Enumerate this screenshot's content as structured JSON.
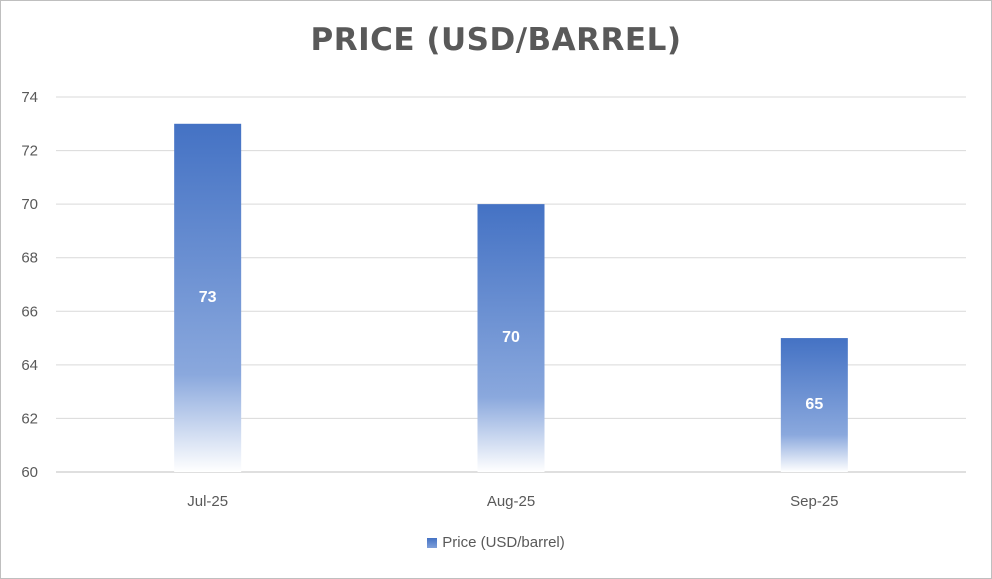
{
  "chart_data": {
    "type": "bar",
    "title": "PRICE (USD/BARREL)",
    "categories": [
      "Jul-25",
      "Aug-25",
      "Sep-25"
    ],
    "series": [
      {
        "name": "Price (USD/barrel)",
        "values": [
          73,
          70,
          65
        ],
        "color": "#4472c4"
      }
    ],
    "data_labels": [
      "73",
      "70",
      "65"
    ],
    "yticks": [
      "60",
      "62",
      "64",
      "66",
      "68",
      "70",
      "72",
      "74"
    ],
    "ylim": [
      60,
      74
    ],
    "grid": true,
    "legend_position": "bottom",
    "bar_fill": "gradient"
  }
}
